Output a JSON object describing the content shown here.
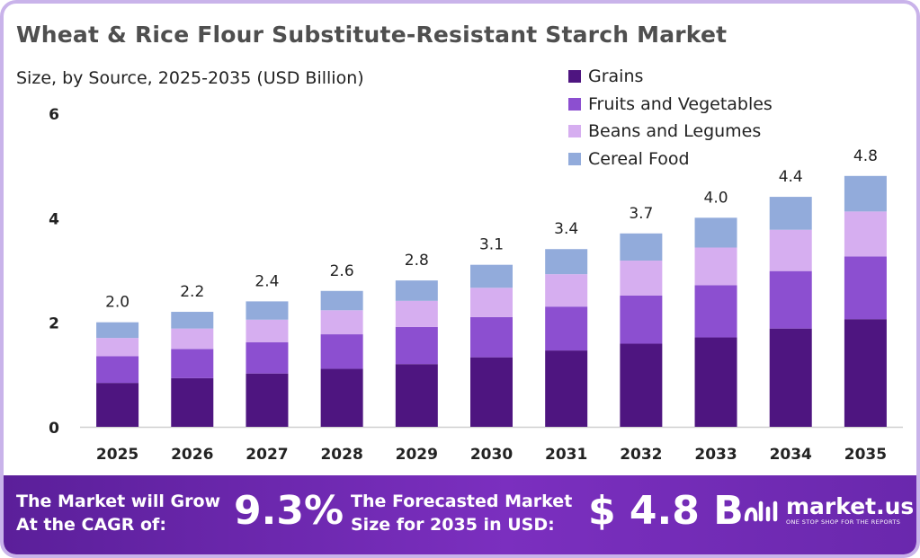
{
  "title": "Wheat & Rice Flour Substitute-Resistant  Starch Market",
  "subtitle": "Size, by Source, 2025-2035 (USD Billion)",
  "chart_data": {
    "type": "bar",
    "stacked": true,
    "categories": [
      "2025",
      "2026",
      "2027",
      "2028",
      "2029",
      "2030",
      "2031",
      "2032",
      "2033",
      "2034",
      "2035"
    ],
    "series": [
      {
        "name": "Grains",
        "color": "#4e1580",
        "values": [
          0.84,
          0.93,
          1.02,
          1.11,
          1.2,
          1.33,
          1.46,
          1.59,
          1.71,
          1.88,
          2.06
        ]
      },
      {
        "name": "Fruits and Vegetables",
        "color": "#8c4fd0",
        "values": [
          0.51,
          0.56,
          0.6,
          0.66,
          0.71,
          0.77,
          0.84,
          0.92,
          1.0,
          1.1,
          1.2
        ]
      },
      {
        "name": "Beans and Legumes",
        "color": "#d6aef0",
        "values": [
          0.35,
          0.39,
          0.43,
          0.46,
          0.5,
          0.56,
          0.62,
          0.67,
          0.72,
          0.79,
          0.86
        ]
      },
      {
        "name": "Cereal Food",
        "color": "#92abdb",
        "values": [
          0.3,
          0.32,
          0.35,
          0.37,
          0.39,
          0.44,
          0.48,
          0.52,
          0.57,
          0.63,
          0.68
        ]
      }
    ],
    "totals": [
      "2.0",
      "2.2",
      "2.4",
      "2.6",
      "2.8",
      "3.1",
      "3.4",
      "3.7",
      "4.0",
      "4.4",
      "4.8"
    ],
    "yticks": [
      "0",
      "2",
      "4",
      "6"
    ],
    "ylim": [
      0,
      6
    ],
    "grid": false,
    "legend_position": "top-right"
  },
  "footer": {
    "cagr_label_1": "The Market will Grow",
    "cagr_label_2": "At the CAGR of:",
    "cagr_value": "9.3%",
    "forecast_label_1": "The Forecasted Market",
    "forecast_label_2": "Size for 2035 in USD:",
    "forecast_value": "$ 4.8 B",
    "brand_name": "market.us",
    "brand_tagline": "ONE STOP SHOP FOR THE REPORTS",
    "background_color": "#6a28ad"
  }
}
